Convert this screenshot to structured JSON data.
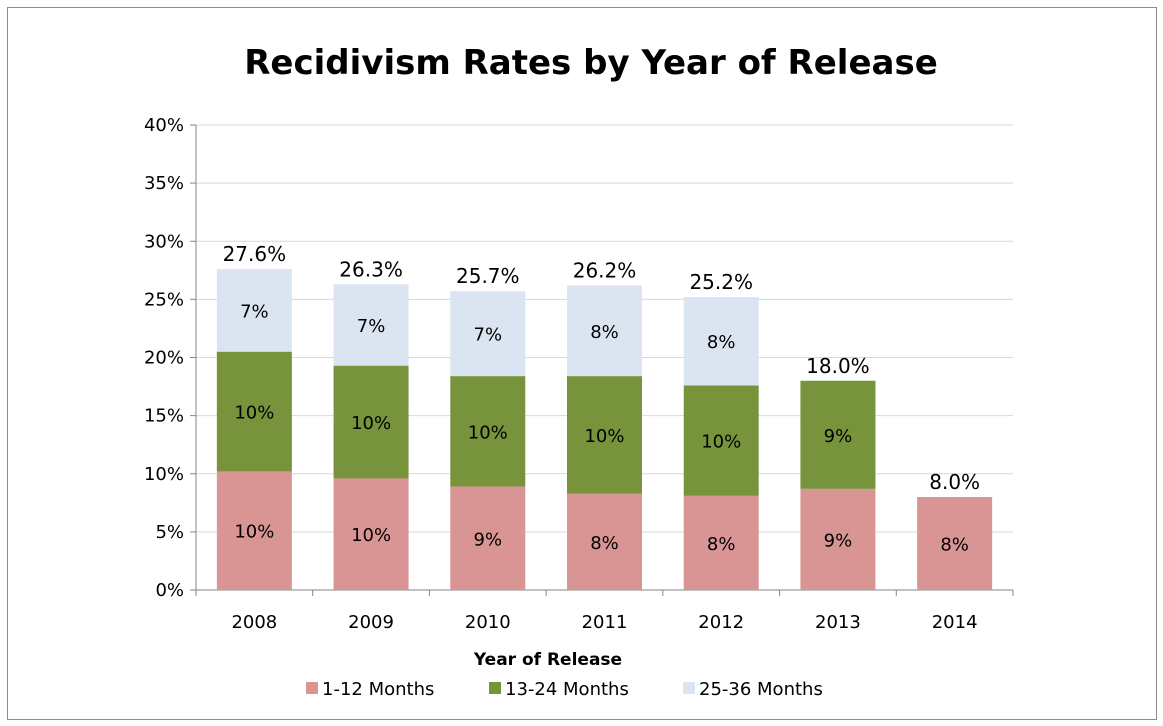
{
  "chart_data": {
    "type": "bar",
    "stacked": true,
    "title": "Recidivism Rates by Year of Release",
    "xlabel": "Year of Release",
    "ylabel": "",
    "ylim": [
      0,
      40
    ],
    "yticks": [
      "0%",
      "5%",
      "10%",
      "15%",
      "20%",
      "25%",
      "30%",
      "35%",
      "40%"
    ],
    "grid": true,
    "legend_position": "bottom",
    "categories": [
      "2008",
      "2009",
      "2010",
      "2011",
      "2012",
      "2013",
      "2014"
    ],
    "series": [
      {
        "name": "1-12 Months",
        "color": "#d99594",
        "values": [
          10.2,
          9.6,
          8.9,
          8.3,
          8.1,
          8.7,
          8.0
        ],
        "labels": [
          "10%",
          "10%",
          "9%",
          "8%",
          "8%",
          "9%",
          "8%"
        ]
      },
      {
        "name": "13-24 Months",
        "color": "#77933c",
        "values": [
          10.3,
          9.7,
          9.5,
          10.1,
          9.5,
          9.3,
          null
        ],
        "labels": [
          "10%",
          "10%",
          "10%",
          "10%",
          "10%",
          "9%",
          ""
        ]
      },
      {
        "name": "25-36 Months",
        "color": "#dbe5f1",
        "values": [
          7.1,
          7.0,
          7.3,
          7.8,
          7.6,
          null,
          null
        ],
        "labels": [
          "7%",
          "7%",
          "7%",
          "8%",
          "8%",
          "",
          ""
        ]
      }
    ],
    "totals": [
      27.6,
      26.3,
      25.7,
      26.2,
      25.2,
      18.0,
      8.0
    ],
    "total_labels": [
      "27.6%",
      "26.3%",
      "25.7%",
      "26.2%",
      "25.2%",
      "18.0%",
      "8.0%"
    ]
  }
}
